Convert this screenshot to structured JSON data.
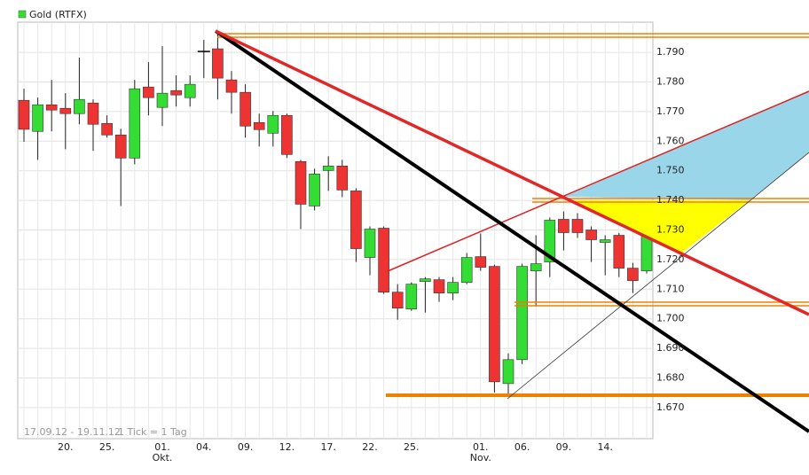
{
  "chart_data": {
    "type": "candlestick",
    "legend": {
      "name": "Gold (RTFX)",
      "color": "#33dd33"
    },
    "footnote": [
      "17.09.12 - 19.11.12",
      "1 Tick = 1 Tag"
    ],
    "categories": [
      null,
      null,
      null,
      "20.",
      null,
      null,
      "25.",
      null,
      null,
      null,
      "01.\nOkt.",
      null,
      null,
      "04.",
      null,
      null,
      "09.",
      null,
      null,
      "12.",
      null,
      null,
      "17.",
      null,
      null,
      "22.",
      null,
      null,
      "25.",
      null,
      null,
      null,
      null,
      "01.\nNov.",
      null,
      null,
      "06.",
      null,
      null,
      "09.",
      null,
      null,
      "14.",
      null,
      null,
      null
    ],
    "open": [
      1.7738,
      1.7633,
      1.7723,
      1.7711,
      1.7693,
      1.7729,
      1.766,
      1.7621,
      1.7543,
      1.7783,
      1.7714,
      1.7771,
      1.7747,
      1.7903,
      1.7912,
      1.7807,
      1.7765,
      1.7663,
      1.7627,
      1.7687,
      1.7531,
      1.7381,
      1.7501,
      1.7516,
      1.7432,
      1.7207,
      1.7306,
      1.709,
      1.7033,
      1.7126,
      1.7132,
      1.7087,
      1.7123,
      1.721,
      1.7177,
      1.6781,
      1.6862,
      1.7162,
      1.7192,
      1.7336,
      1.7336,
      1.73,
      1.7258,
      1.7282,
      1.7171,
      1.7162
    ],
    "high": [
      1.7777,
      1.7747,
      1.7807,
      1.7762,
      1.7882,
      1.7741,
      1.7687,
      1.7642,
      1.7807,
      1.7867,
      1.7921,
      1.7822,
      1.7822,
      1.7942,
      1.7972,
      1.7837,
      1.7792,
      1.7693,
      1.7702,
      1.7693,
      1.7537,
      1.7507,
      1.7549,
      1.7537,
      1.7441,
      1.7312,
      1.7312,
      1.7117,
      1.7123,
      1.7141,
      1.7141,
      1.7141,
      1.7222,
      1.7288,
      1.7183,
      1.6883,
      1.7186,
      1.7282,
      1.7342,
      1.7363,
      1.7357,
      1.7312,
      1.7282,
      1.729,
      1.7189,
      1.7333
    ],
    "low": [
      1.7598,
      1.7537,
      1.7633,
      1.7573,
      1.7657,
      1.7567,
      1.7612,
      1.7381,
      1.7522,
      1.7687,
      1.7651,
      1.7717,
      1.7717,
      1.7813,
      1.7741,
      1.7693,
      1.7612,
      1.7582,
      1.7582,
      1.7543,
      1.7303,
      1.7366,
      1.7432,
      1.7411,
      1.7192,
      1.7147,
      1.7084,
      1.6997,
      1.7027,
      1.7021,
      1.7057,
      1.7063,
      1.7117,
      1.7162,
      1.6751,
      1.6742,
      1.6847,
      1.7042,
      1.7141,
      1.7231,
      1.7273,
      1.7192,
      1.7147,
      1.7141,
      1.7087,
      1.7153
    ],
    "close": [
      1.764,
      1.7723,
      1.7705,
      1.7693,
      1.7741,
      1.7657,
      1.7621,
      1.7543,
      1.7777,
      1.7747,
      1.7762,
      1.7756,
      1.7792,
      1.7903,
      1.7813,
      1.7765,
      1.7651,
      1.7639,
      1.7687,
      1.7555,
      1.7387,
      1.7489,
      1.7516,
      1.7435,
      1.7237,
      1.7303,
      1.709,
      1.7036,
      1.7117,
      1.7135,
      1.7087,
      1.7123,
      1.7207,
      1.7174,
      1.6787,
      1.6862,
      1.7177,
      1.7186,
      1.7333,
      1.7291,
      1.7291,
      1.7267,
      1.7267,
      1.7171,
      1.7129,
      1.7327
    ],
    "up_color": "#33dd33",
    "down_color": "#ee3333",
    "ylim": [
      1.6595,
      1.8002
    ],
    "yticks": [
      {
        "value": 1.67,
        "label": "1.670"
      },
      {
        "value": 1.68,
        "label": "1.680"
      },
      {
        "value": 1.69,
        "label": "1.690"
      },
      {
        "value": 1.7,
        "label": "1.700"
      },
      {
        "value": 1.71,
        "label": "1.710"
      },
      {
        "value": 1.72,
        "label": "1.720"
      },
      {
        "value": 1.73,
        "label": "1.730"
      },
      {
        "value": 1.74,
        "label": "1.740"
      },
      {
        "value": 1.75,
        "label": "1.750"
      },
      {
        "value": 1.76,
        "label": "1.760"
      },
      {
        "value": 1.77,
        "label": "1.770"
      },
      {
        "value": 1.78,
        "label": "1.780"
      },
      {
        "value": 1.79,
        "label": "1.790"
      }
    ],
    "grid": true
  }
}
